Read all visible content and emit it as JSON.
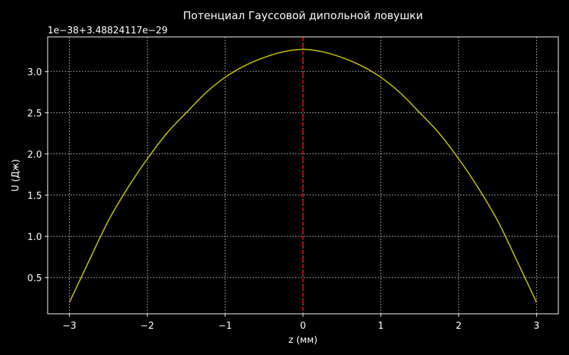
{
  "chart_data": {
    "type": "line",
    "title": "Потенциал Гауссовой дипольной ловушки",
    "xlabel": "z (мм)",
    "ylabel": "U (Дж)",
    "offset_text": "1e−38+3.48824117e−29",
    "xlim": [
      -3.28,
      3.28
    ],
    "ylim": [
      0.06,
      3.42
    ],
    "x_ticks": [
      -3,
      -2,
      -1,
      0,
      1,
      2,
      3
    ],
    "x_tick_labels": [
      "−3",
      "−2",
      "−1",
      "0",
      "1",
      "2",
      "3"
    ],
    "y_ticks": [
      0.5,
      1.0,
      1.5,
      2.0,
      2.5,
      3.0
    ],
    "y_tick_labels": [
      "0.5",
      "1.0",
      "1.5",
      "2.0",
      "2.5",
      "3.0"
    ],
    "grid": true,
    "background_color": "#000000",
    "series": [
      {
        "color": "#bfbf00",
        "x": [
          -3.0,
          -2.75,
          -2.5,
          -2.25,
          -2.0,
          -1.75,
          -1.5,
          -1.25,
          -1.0,
          -0.75,
          -0.5,
          -0.25,
          0.0,
          0.25,
          0.5,
          0.75,
          1.0,
          1.25,
          1.5,
          1.75,
          2.0,
          2.25,
          2.5,
          2.75,
          3.0
        ],
        "y": [
          0.2,
          0.7,
          1.19,
          1.59,
          1.94,
          2.25,
          2.5,
          2.74,
          2.93,
          3.07,
          3.17,
          3.24,
          3.27,
          3.24,
          3.17,
          3.07,
          2.93,
          2.74,
          2.5,
          2.25,
          1.94,
          1.59,
          1.19,
          0.7,
          0.2
        ]
      }
    ],
    "vline": {
      "x": 0,
      "color": "#ff0000",
      "style": "dashed"
    }
  }
}
